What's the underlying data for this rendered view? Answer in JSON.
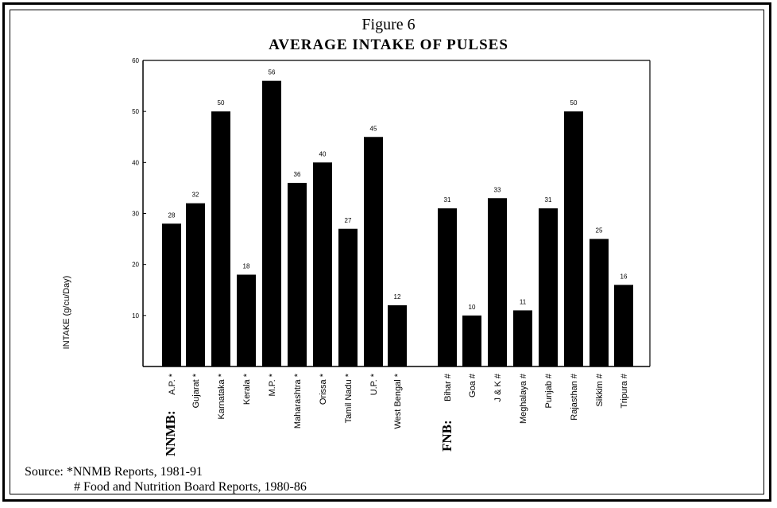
{
  "figure_number": "Figure 6",
  "source_line1": "Source: *NNMB Reports, 1981-91",
  "source_line2": "# Food and Nutrition Board Reports, 1980-86",
  "chart_data": {
    "type": "bar",
    "title": "AVERAGE INTAKE OF PULSES",
    "ylabel": "INTAKE (g/cu/Day)",
    "ylim": [
      0,
      60
    ],
    "yticks": [
      10,
      20,
      30,
      40,
      50,
      60
    ],
    "ytick_labels": [
      "10",
      "20",
      "30",
      "40",
      "50",
      "60"
    ],
    "grid": false,
    "bar_color": "#000000",
    "groups": [
      {
        "name": "NNMB:",
        "bars": [
          {
            "label": "A.P. *",
            "value": 28,
            "data_label": "28"
          },
          {
            "label": "Gujarat *",
            "value": 32,
            "data_label": "32"
          },
          {
            "label": "Karnataka *",
            "value": 50,
            "data_label": "50"
          },
          {
            "label": "Kerala *",
            "value": 18,
            "data_label": "18"
          },
          {
            "label": "M.P. *",
            "value": 56,
            "data_label": "56"
          },
          {
            "label": "Maharashtra *",
            "value": 36,
            "data_label": "36"
          },
          {
            "label": "Orissa *",
            "value": 40,
            "data_label": "40"
          },
          {
            "label": "Tamil Nadu *",
            "value": 27,
            "data_label": "27"
          },
          {
            "label": "U.P. *",
            "value": 45,
            "data_label": "45"
          },
          {
            "label": "West Bengal *",
            "value": 12,
            "data_label": "12"
          }
        ]
      },
      {
        "name": "FNB:",
        "bars": [
          {
            "label": "Bihar #",
            "value": 31,
            "data_label": "31"
          },
          {
            "label": "Goa #",
            "value": 10,
            "data_label": "10"
          },
          {
            "label": "J & K #",
            "value": 33,
            "data_label": "33"
          },
          {
            "label": "Meghalaya #",
            "value": 11,
            "data_label": "11"
          },
          {
            "label": "Punjab #",
            "value": 31,
            "data_label": "31"
          },
          {
            "label": "Rajasthan #",
            "value": 50,
            "data_label": "50"
          },
          {
            "label": "Sikkim #",
            "value": 25,
            "data_label": "25"
          },
          {
            "label": "Tripura #",
            "value": 16,
            "data_label": "16"
          }
        ]
      }
    ]
  }
}
